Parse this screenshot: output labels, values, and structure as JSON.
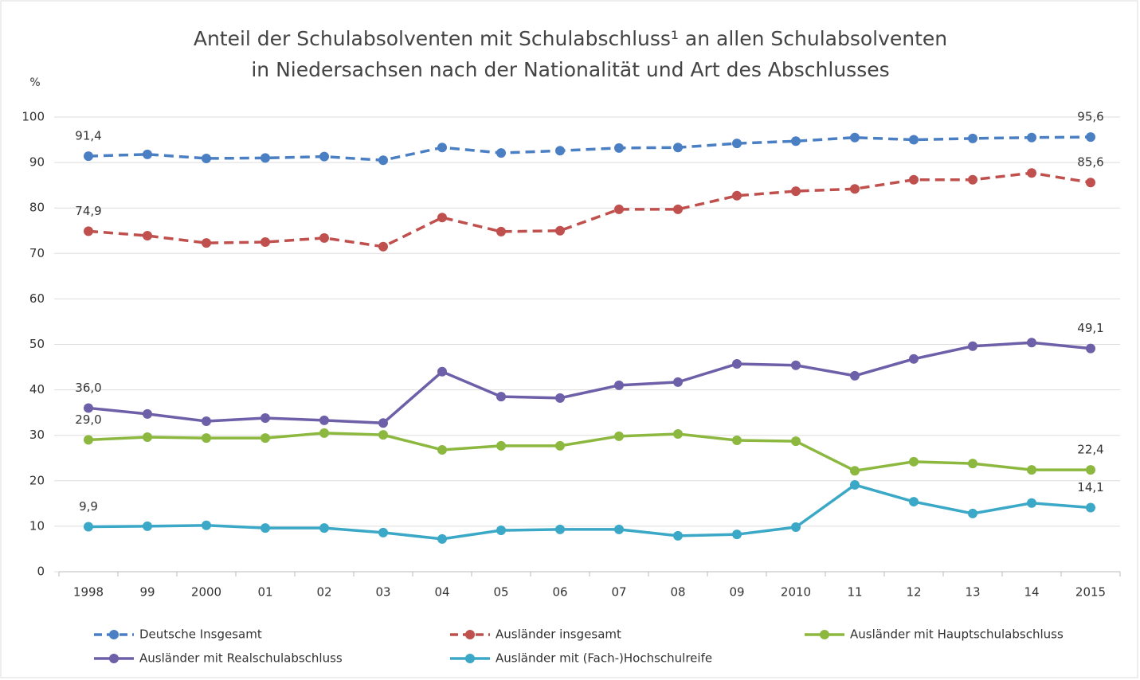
{
  "chart_data": {
    "type": "line",
    "title": [
      "Anteil der Schulabsolventen mit Schulabschluss¹ an allen Schulabsolventen",
      "in Niedersachsen nach der Nationalität und Art des Abschlusses"
    ],
    "y_label": "%",
    "categories": [
      "1998",
      "99",
      "2000",
      "01",
      "02",
      "03",
      "04",
      "05",
      "06",
      "07",
      "08",
      "09",
      "2010",
      "11",
      "12",
      "13",
      "14",
      "2015"
    ],
    "ylim": [
      0,
      100
    ],
    "yticks": [
      0,
      10,
      20,
      30,
      40,
      50,
      60,
      70,
      80,
      90,
      100
    ],
    "grid": true,
    "legend": "bottom",
    "series": [
      {
        "name": "Deutsche Insgesamt",
        "color": "#4a7fc4",
        "dashed": true,
        "values": [
          91.4,
          91.8,
          90.9,
          91.0,
          91.3,
          90.5,
          93.3,
          92.1,
          92.6,
          93.2,
          93.3,
          94.2,
          94.7,
          95.5,
          95.0,
          95.3,
          95.5,
          95.6
        ],
        "value_labels": [
          "91,4",
          null,
          null,
          null,
          null,
          null,
          null,
          null,
          null,
          null,
          null,
          null,
          null,
          null,
          null,
          null,
          null,
          "95,6"
        ]
      },
      {
        "name": "Ausländer insgesamt",
        "color": "#c0504d",
        "dashed": true,
        "values": [
          74.9,
          73.9,
          72.3,
          72.5,
          73.4,
          71.5,
          77.9,
          74.8,
          75.0,
          79.7,
          79.7,
          82.7,
          83.7,
          84.2,
          86.2,
          86.2,
          87.7,
          85.6
        ],
        "value_labels": [
          "74,9",
          null,
          null,
          null,
          null,
          null,
          null,
          null,
          null,
          null,
          null,
          null,
          null,
          null,
          null,
          null,
          null,
          "85,6"
        ]
      },
      {
        "name": "Ausländer mit Hauptschulabschluss",
        "color": "#8db83f",
        "dashed": false,
        "values": [
          29.0,
          29.6,
          29.4,
          29.4,
          30.5,
          30.1,
          26.8,
          27.7,
          27.7,
          29.8,
          30.3,
          28.9,
          28.7,
          22.2,
          24.2,
          23.8,
          22.4,
          22.4
        ],
        "value_labels": [
          "29,0",
          null,
          null,
          null,
          null,
          null,
          null,
          null,
          null,
          null,
          null,
          null,
          null,
          null,
          null,
          null,
          null,
          "22,4"
        ]
      },
      {
        "name": "Ausländer mit Realschulabschluss",
        "color": "#6d5fa8",
        "dashed": false,
        "values": [
          36.0,
          34.7,
          33.1,
          33.8,
          33.3,
          32.7,
          44.0,
          38.5,
          38.2,
          41.0,
          41.7,
          45.7,
          45.4,
          43.1,
          46.8,
          49.6,
          50.4,
          49.1
        ],
        "value_labels": [
          "36,0",
          null,
          null,
          null,
          null,
          null,
          null,
          null,
          null,
          null,
          null,
          null,
          null,
          null,
          null,
          null,
          null,
          "49,1"
        ]
      },
      {
        "name": "Ausländer mit (Fach-)Hochschulreife",
        "color": "#3aa8c6",
        "dashed": false,
        "values": [
          9.9,
          10.0,
          10.2,
          9.6,
          9.6,
          8.6,
          7.2,
          9.1,
          9.3,
          9.3,
          7.9,
          8.2,
          9.8,
          19.1,
          15.4,
          12.8,
          15.1,
          14.1
        ],
        "value_labels": [
          "9,9",
          null,
          null,
          null,
          null,
          null,
          null,
          null,
          null,
          null,
          null,
          null,
          null,
          null,
          null,
          null,
          null,
          "14,1"
        ]
      }
    ]
  }
}
